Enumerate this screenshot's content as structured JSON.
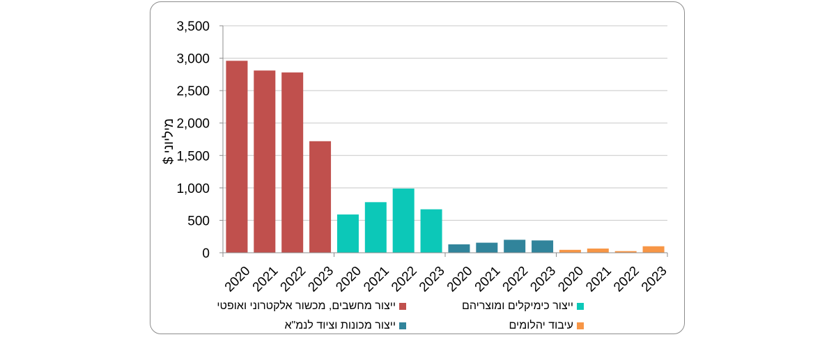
{
  "chart_data": {
    "type": "bar",
    "ylabel": "מיליוני $",
    "ylim": [
      0,
      3500
    ],
    "yticks": [
      "0",
      "500",
      "1,000",
      "1,500",
      "2,000",
      "2,500",
      "3,000",
      "3,500"
    ],
    "ytick_values": [
      0,
      500,
      1000,
      1500,
      2000,
      2500,
      3000,
      3500
    ],
    "grid": true,
    "legend_position": "bottom",
    "series": [
      {
        "name": "ייצור מחשבים, מכשור אלקטרוני ואופטי",
        "color": "#c0504d",
        "x": [
          "2020",
          "2021",
          "2022",
          "2023"
        ],
        "values": [
          2960,
          2810,
          2780,
          1720
        ]
      },
      {
        "name": "ייצור כימיקלים ומוצריהם",
        "color": "#0cc8b8",
        "x": [
          "2020",
          "2021",
          "2022",
          "2023"
        ],
        "values": [
          590,
          780,
          990,
          670
        ]
      },
      {
        "name": "ייצור מכונות וציוד לנמ\"א",
        "color": "#31849b",
        "x": [
          "2020",
          "2021",
          "2022",
          "2023"
        ],
        "values": [
          130,
          155,
          200,
          190
        ]
      },
      {
        "name": "עיבוד יהלומים",
        "color": "#f79646",
        "x": [
          "2020",
          "2021",
          "2022",
          "2023"
        ],
        "values": [
          45,
          65,
          25,
          100
        ]
      }
    ]
  }
}
